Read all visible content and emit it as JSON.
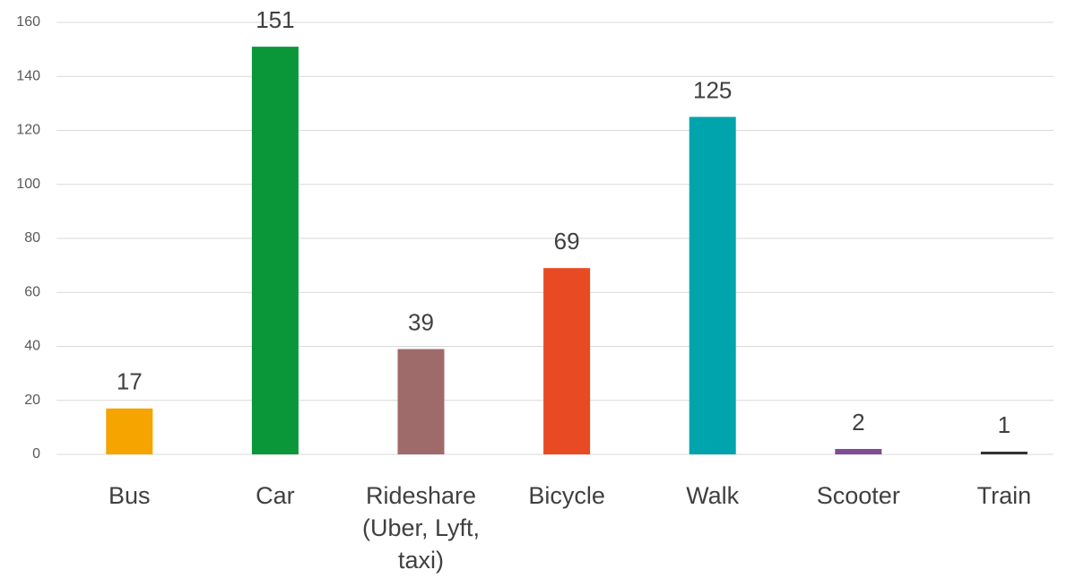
{
  "chart_data": {
    "type": "bar",
    "categories": [
      "Bus",
      "Car",
      "Rideshare (Uber, Lyft, taxi)",
      "Bicycle",
      "Walk",
      "Scooter",
      "Train"
    ],
    "values": [
      17,
      151,
      39,
      69,
      125,
      2,
      1
    ],
    "colors": [
      "#f5a400",
      "#0a973a",
      "#9e6b6a",
      "#e84a23",
      "#00a4ac",
      "#7e4c94",
      "#333333"
    ],
    "ylim": [
      0,
      160
    ],
    "yticks": [
      0,
      20,
      40,
      60,
      80,
      100,
      120,
      140,
      160
    ],
    "grid": true,
    "data_labels": true
  }
}
